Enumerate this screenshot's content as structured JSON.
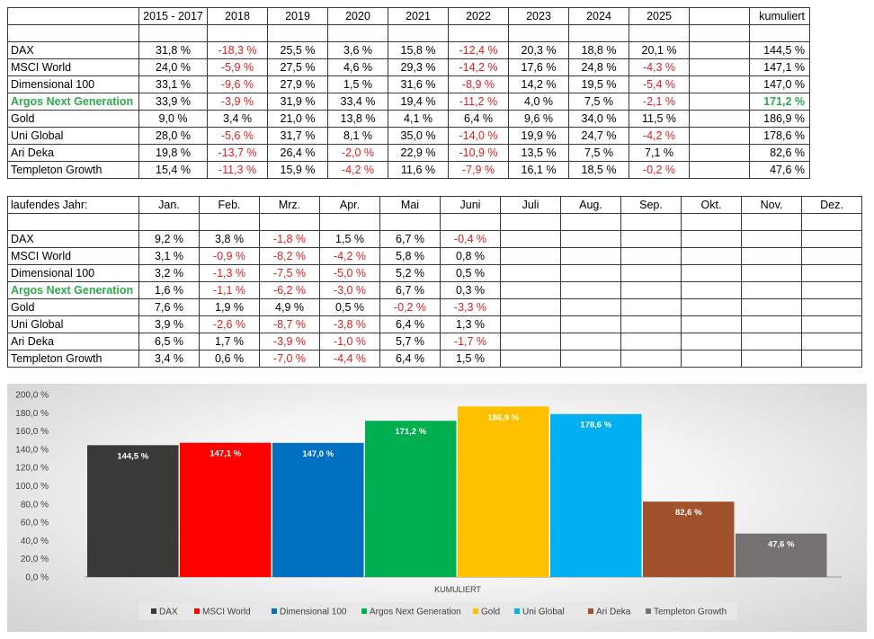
{
  "table1": {
    "headers": [
      "",
      "2015 - 2017",
      "2018",
      "2019",
      "2020",
      "2021",
      "2022",
      "2023",
      "2024",
      "2025",
      "",
      "kumuliert"
    ],
    "rows": [
      {
        "name": "DAX",
        "highlight": false,
        "values": [
          "31,8 %",
          "-18,3 %",
          "25,5 %",
          "3,6 %",
          "15,8 %",
          "-12,4 %",
          "20,3 %",
          "18,8 %",
          "20,1 %",
          "",
          "144,5 %"
        ]
      },
      {
        "name": "MSCI World",
        "highlight": false,
        "values": [
          "24,0 %",
          "-5,9 %",
          "27,5 %",
          "4,6 %",
          "29,3 %",
          "-14,2 %",
          "17,6 %",
          "24,8 %",
          "-4,3 %",
          "",
          "147,1 %"
        ]
      },
      {
        "name": "Dimensional 100",
        "highlight": false,
        "values": [
          "33,1 %",
          "-9,6 %",
          "27,9 %",
          "1,5 %",
          "31,6 %",
          "-8,9 %",
          "14,2 %",
          "19,5 %",
          "-5,4 %",
          "",
          "147,0 %"
        ]
      },
      {
        "name": "Argos Next Generation",
        "highlight": true,
        "values": [
          "33,9 %",
          "-3,9 %",
          "31,9 %",
          "33,4 %",
          "19,4 %",
          "-11,2 %",
          "4,0 %",
          "7,5 %",
          "-2,1 %",
          "",
          "171,2 %"
        ]
      },
      {
        "name": "Gold",
        "highlight": false,
        "values": [
          "9,0 %",
          "3,4 %",
          "21,0 %",
          "13,8 %",
          "4,1 %",
          "6,4 %",
          "9,6 %",
          "34,0 %",
          "11,5 %",
          "",
          "186,9 %"
        ]
      },
      {
        "name": "Uni Global",
        "highlight": false,
        "values": [
          "28,0 %",
          "-5,6 %",
          "31,7 %",
          "8,1 %",
          "35,0 %",
          "-14,0 %",
          "19,9 %",
          "24,7 %",
          "-4,2 %",
          "",
          "178,6 %"
        ]
      },
      {
        "name": "Ari Deka",
        "highlight": false,
        "values": [
          "19,8 %",
          "-13,7 %",
          "26,4 %",
          "-2,0 %",
          "22,9 %",
          "-10,9 %",
          "13,5 %",
          "7,5 %",
          "7,1 %",
          "",
          "82,6 %"
        ]
      },
      {
        "name": "Templeton Growth",
        "highlight": false,
        "values": [
          "15,4 %",
          "-11,3 %",
          "15,9 %",
          "-4,2 %",
          "11,6 %",
          "-7,9 %",
          "16,1 %",
          "18,5 %",
          "-0,2 %",
          "",
          "47,6 %"
        ]
      }
    ]
  },
  "table2": {
    "headers": [
      "laufendes Jahr:",
      "Jan.",
      "Feb.",
      "Mrz.",
      "Apr.",
      "Mai",
      "Juni",
      "Juli",
      "Aug.",
      "Sep.",
      "Okt.",
      "Nov.",
      "Dez."
    ],
    "rows": [
      {
        "name": "DAX",
        "highlight": false,
        "values": [
          "9,2 %",
          "3,8 %",
          "-1,8 %",
          "1,5 %",
          "6,7 %",
          "-0,4 %",
          "",
          "",
          "",
          "",
          "",
          ""
        ]
      },
      {
        "name": "MSCI World",
        "highlight": false,
        "values": [
          "3,1 %",
          "-0,9 %",
          "-8,2 %",
          "-4,2 %",
          "5,8 %",
          "0,8 %",
          "",
          "",
          "",
          "",
          "",
          ""
        ]
      },
      {
        "name": "Dimensional 100",
        "highlight": false,
        "values": [
          "3,2 %",
          "-1,3 %",
          "-7,5 %",
          "-5,0 %",
          "5,2 %",
          "0,5 %",
          "",
          "",
          "",
          "",
          "",
          ""
        ]
      },
      {
        "name": "Argos Next Generation",
        "highlight": true,
        "values": [
          "1,6 %",
          "-1,1 %",
          "-6,2 %",
          "-3,0 %",
          "6,7 %",
          "0,3 %",
          "",
          "",
          "",
          "",
          "",
          ""
        ]
      },
      {
        "name": "Gold",
        "highlight": false,
        "values": [
          "7,6 %",
          "1,9 %",
          "4,9 %",
          "0,5 %",
          "-0,2 %",
          "-3,3 %",
          "",
          "",
          "",
          "",
          "",
          ""
        ]
      },
      {
        "name": "Uni Global",
        "highlight": false,
        "values": [
          "3,9 %",
          "-2,6 %",
          "-8,7 %",
          "-3,8 %",
          "6,4 %",
          "1,3 %",
          "",
          "",
          "",
          "",
          "",
          ""
        ]
      },
      {
        "name": "Ari Deka",
        "highlight": false,
        "values": [
          "6,5 %",
          "1,7 %",
          "-3,9 %",
          "-1,0 %",
          "5,7 %",
          "-1,7 %",
          "",
          "",
          "",
          "",
          "",
          ""
        ]
      },
      {
        "name": "Templeton Growth",
        "highlight": false,
        "values": [
          "3,4 %",
          "0,6 %",
          "-7,0 %",
          "-4,4 %",
          "6,4 %",
          "1,5 %",
          "",
          "",
          "",
          "",
          "",
          ""
        ]
      }
    ]
  },
  "colors": {
    "negative": "#e02020",
    "highlight": "#2eaa4a"
  },
  "chart_data": {
    "type": "bar",
    "title": "",
    "xlabel": "",
    "ylabel": "",
    "categories": [
      "KUMULIERT"
    ],
    "series": [
      {
        "name": "DAX",
        "value": 144.5,
        "label": "144,5 %",
        "color": "#3b3838"
      },
      {
        "name": "MSCI World",
        "value": 147.1,
        "label": "147,1 %",
        "color": "#ff0000"
      },
      {
        "name": "Dimensional 100",
        "value": 147.0,
        "label": "147,0 %",
        "color": "#0070c0"
      },
      {
        "name": "Argos Next Generation",
        "value": 171.2,
        "label": "171,2 %",
        "color": "#00b050"
      },
      {
        "name": "Gold",
        "value": 186.9,
        "label": "186,9 %",
        "color": "#ffc000"
      },
      {
        "name": "Uni Global",
        "value": 178.6,
        "label": "178,6 %",
        "color": "#00b0f0"
      },
      {
        "name": "Ari Deka",
        "value": 82.6,
        "label": "82,6 %",
        "color": "#a0522d"
      },
      {
        "name": "Templeton Growth",
        "value": 47.6,
        "label": "47,6 %",
        "color": "#767171"
      }
    ],
    "ylim": [
      0,
      200
    ],
    "yticks": [
      "0,0 %",
      "20,0 %",
      "40,0 %",
      "60,0 %",
      "80,0 %",
      "100,0 %",
      "120,0 %",
      "140,0 %",
      "160,0 %",
      "180,0 %",
      "200,0 %"
    ],
    "legend_position": "bottom",
    "grid": false
  }
}
